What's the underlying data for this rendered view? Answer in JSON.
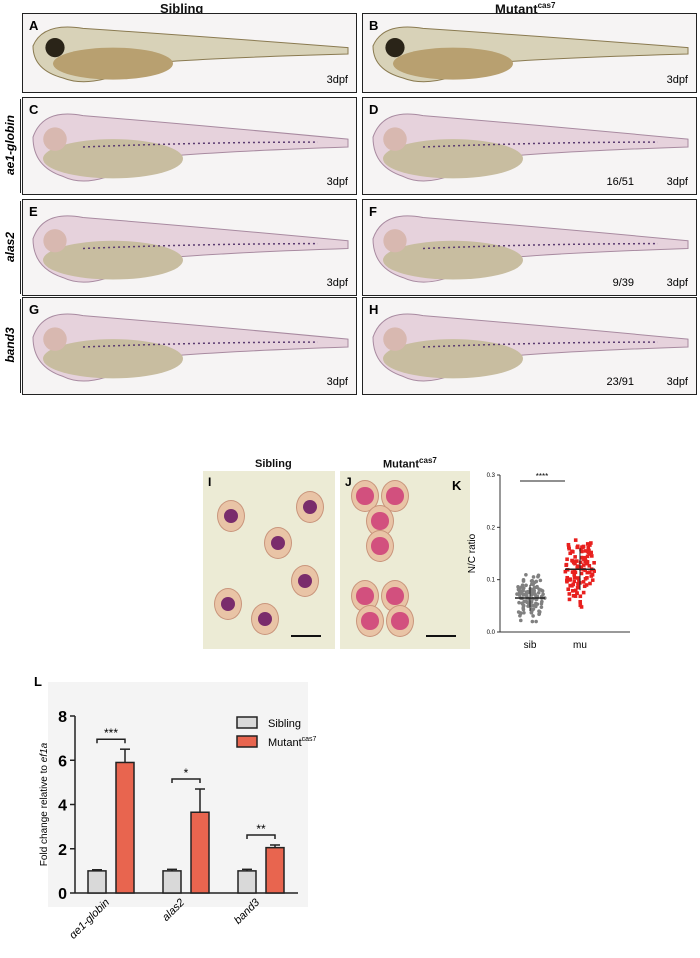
{
  "columns": {
    "sibling": "Sibling",
    "mutant": "Mutant",
    "mutant_sup": "cas7"
  },
  "rows": [
    {
      "gene": "",
      "left": {
        "label": "A",
        "stage": "3dpf",
        "count": ""
      },
      "right": {
        "label": "B",
        "stage": "3dpf",
        "count": ""
      },
      "stain": "live"
    },
    {
      "gene": "ae1-globin",
      "left": {
        "label": "C",
        "stage": "3dpf",
        "count": ""
      },
      "right": {
        "label": "D",
        "stage": "3dpf",
        "count": "16/51"
      },
      "stain": "ish"
    },
    {
      "gene": "alas2",
      "left": {
        "label": "E",
        "stage": "3dpf",
        "count": ""
      },
      "right": {
        "label": "F",
        "stage": "3dpf",
        "count": "9/39"
      },
      "stain": "ish"
    },
    {
      "gene": "band3",
      "left": {
        "label": "G",
        "stage": "3dpf",
        "count": ""
      },
      "right": {
        "label": "H",
        "stage": "3dpf",
        "count": "23/91"
      },
      "stain": "ish"
    }
  ],
  "smears": {
    "sibling_title": "Sibling",
    "mutant_title": "Mutant",
    "mutant_sup": "cas7",
    "left_label": "I",
    "right_label": "J"
  },
  "chart_data": [
    {
      "type": "scatter",
      "panel": "K",
      "ylabel": "N/C ratio",
      "ylim": [
        0,
        0.3
      ],
      "yticks": [
        "0.0",
        "0.1",
        "0.2",
        "0.3"
      ],
      "categories": [
        "sib",
        "mu"
      ],
      "significance": "****",
      "series": [
        {
          "name": "sib",
          "mean": 0.065,
          "sd": 0.025,
          "n": 110,
          "min": 0.02,
          "max": 0.135,
          "color": "#808080"
        },
        {
          "name": "mu",
          "mean": 0.12,
          "sd": 0.04,
          "n": 110,
          "min": 0.047,
          "max": 0.265,
          "color": "#e8201e"
        }
      ]
    },
    {
      "type": "bar",
      "panel": "L",
      "ylabel": "Fold change relative to ",
      "ylabel_italic": "ef1a",
      "ylim": [
        0,
        8
      ],
      "yticks": [
        "0",
        "2",
        "4",
        "6",
        "8"
      ],
      "categories": [
        "αe1-globin",
        "alas2",
        "band3"
      ],
      "series": [
        {
          "name": "Sibling",
          "values": [
            1.0,
            1.0,
            1.0
          ],
          "errors": [
            0.05,
            0.07,
            0.07
          ],
          "color": "#d9d9d9"
        },
        {
          "name": "Mutant",
          "name_sup": "cas7",
          "values": [
            5.9,
            3.65,
            2.05
          ],
          "errors": [
            0.6,
            1.05,
            0.12
          ],
          "color": "#e8654f"
        }
      ],
      "significance": [
        "***",
        "*",
        "**"
      ],
      "legend": "top-right"
    }
  ]
}
